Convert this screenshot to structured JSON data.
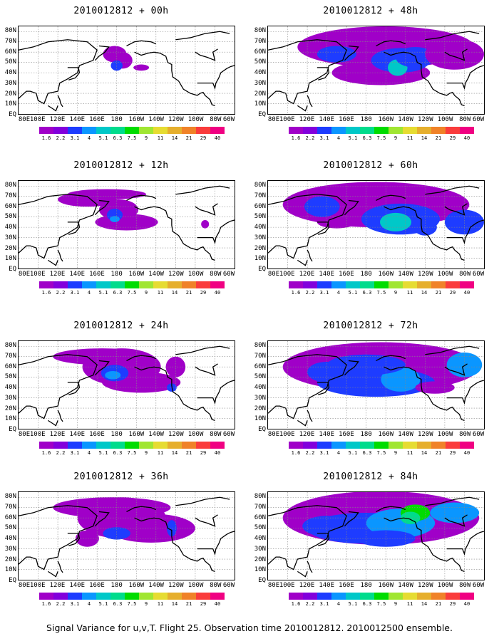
{
  "caption": "Signal Variance for u,v,T. Flight 25. Observation time 2010012812. 2010012500 ensemble.",
  "chart_data": {
    "type": "heatmap",
    "lat_labels": [
      "80N",
      "70N",
      "60N",
      "50N",
      "40N",
      "30N",
      "20N",
      "10N",
      "EQ"
    ],
    "lon_labels": [
      "80E",
      "100E",
      "120E",
      "140E",
      "160E",
      "180",
      "160W",
      "140W",
      "120W",
      "100W",
      "80W",
      "60W"
    ],
    "colorbar": {
      "levels": [
        "1.6",
        "2.2",
        "3.1",
        "4",
        "5.1",
        "6.3",
        "7.5",
        "9",
        "11",
        "14",
        "21",
        "29",
        "40"
      ],
      "colors": [
        "#a000c8",
        "#8200dc",
        "#1e3cff",
        "#0a96ff",
        "#00c8c8",
        "#00dc8c",
        "#00dc00",
        "#a0e632",
        "#e6dc32",
        "#e6af2d",
        "#f08228",
        "#fa3c3c",
        "#f00082"
      ]
    },
    "panels": [
      {
        "title": "2010012812 + 00h",
        "level": 0
      },
      {
        "title": "2010012812 + 12h",
        "level": 1
      },
      {
        "title": "2010012812 + 24h",
        "level": 2
      },
      {
        "title": "2010012812 + 36h",
        "level": 3
      },
      {
        "title": "2010012812 + 48h",
        "level": 4
      },
      {
        "title": "2010012812 + 60h",
        "level": 5
      },
      {
        "title": "2010012812 + 72h",
        "level": 6
      },
      {
        "title": "2010012812 + 84h",
        "level": 7
      }
    ]
  }
}
